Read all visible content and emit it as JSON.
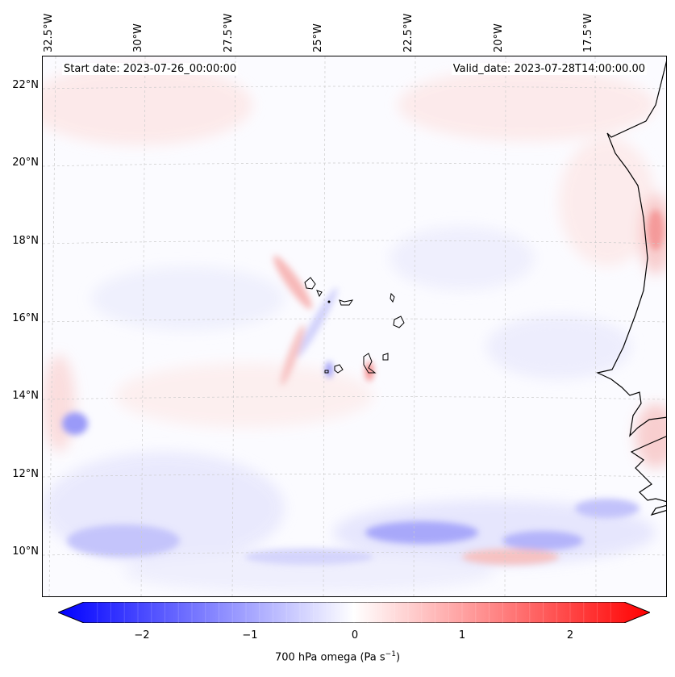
{
  "header": {
    "start_date": "Start date: 2023-07-26_00:00:00",
    "valid_date": "Valid_date: 2023-07-28T14:00:00.00"
  },
  "axes": {
    "lon_labels": [
      "32.5°W",
      "30°W",
      "27.5°W",
      "25°W",
      "22.5°W",
      "20°W",
      "17.5°W"
    ],
    "lat_labels": [
      "22°N",
      "20°N",
      "18°N",
      "16°N",
      "14°N",
      "12°N",
      "10°N"
    ]
  },
  "colorbar": {
    "ticks": [
      "−2",
      "−1",
      "0",
      "1",
      "2"
    ],
    "label_text": "700 hPa omega (Pa s",
    "label_sup": "−1",
    "label_close": ")",
    "min": -2.7,
    "max": 2.7,
    "neg_color": "#0000ff",
    "pos_color": "#ff0000"
  },
  "colors": {
    "coast": "#000000",
    "grid": "#cccccc"
  }
}
